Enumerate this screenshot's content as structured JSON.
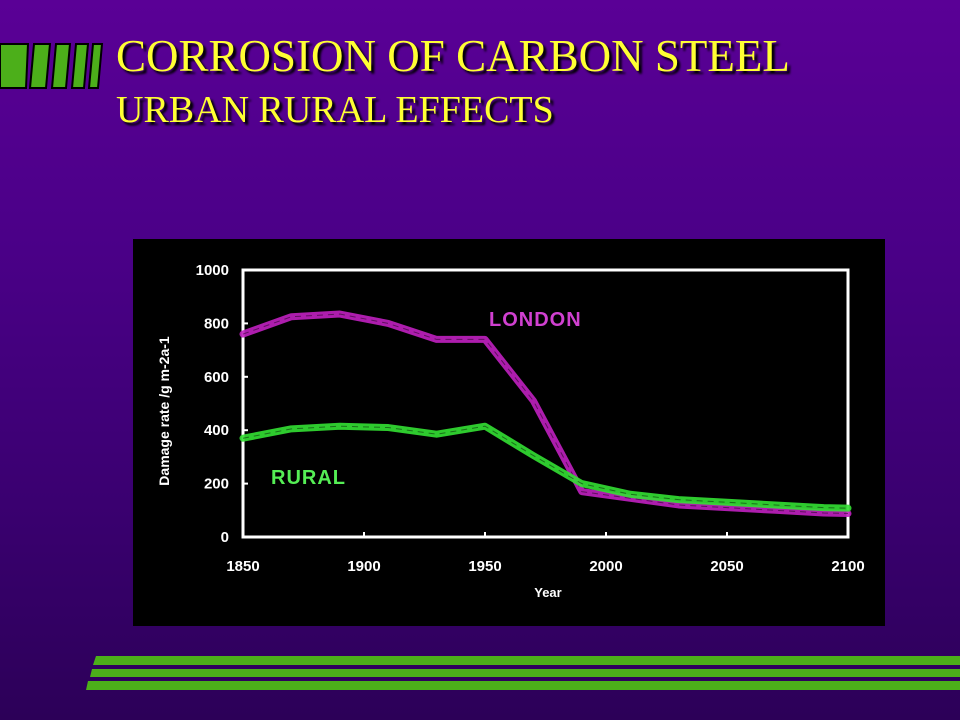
{
  "slide": {
    "title_line1": "CORROSION OF CARBON STEEL",
    "title_line2": "URBAN RURAL EFFECTS",
    "title_color": "#ffff33",
    "accent_green": "#4caf1a"
  },
  "chart_data": {
    "type": "line",
    "xlabel": "Year",
    "ylabel": "Damage rate /g m-2a-1",
    "xlim": [
      1850,
      2100
    ],
    "ylim": [
      0,
      1000
    ],
    "x_ticks": [
      "1850",
      "1900",
      "1950",
      "2000",
      "2050",
      "2100"
    ],
    "y_ticks": [
      "0",
      "200",
      "400",
      "600",
      "800",
      "1000"
    ],
    "grid": false,
    "series": [
      {
        "name": "LONDON",
        "color": "#c020c0",
        "x": [
          1850,
          1870,
          1890,
          1910,
          1930,
          1950,
          1970,
          1990,
          2010,
          2030,
          2050,
          2070,
          2090,
          2100
        ],
        "values": [
          760,
          825,
          835,
          800,
          740,
          740,
          510,
          170,
          145,
          120,
          110,
          100,
          90,
          88
        ]
      },
      {
        "name": "RURAL",
        "color": "#33e033",
        "x": [
          1850,
          1870,
          1890,
          1910,
          1930,
          1950,
          1970,
          1990,
          2010,
          2030,
          2050,
          2070,
          2090,
          2100
        ],
        "values": [
          370,
          405,
          415,
          410,
          385,
          415,
          305,
          200,
          160,
          140,
          130,
          120,
          110,
          108
        ]
      }
    ]
  }
}
